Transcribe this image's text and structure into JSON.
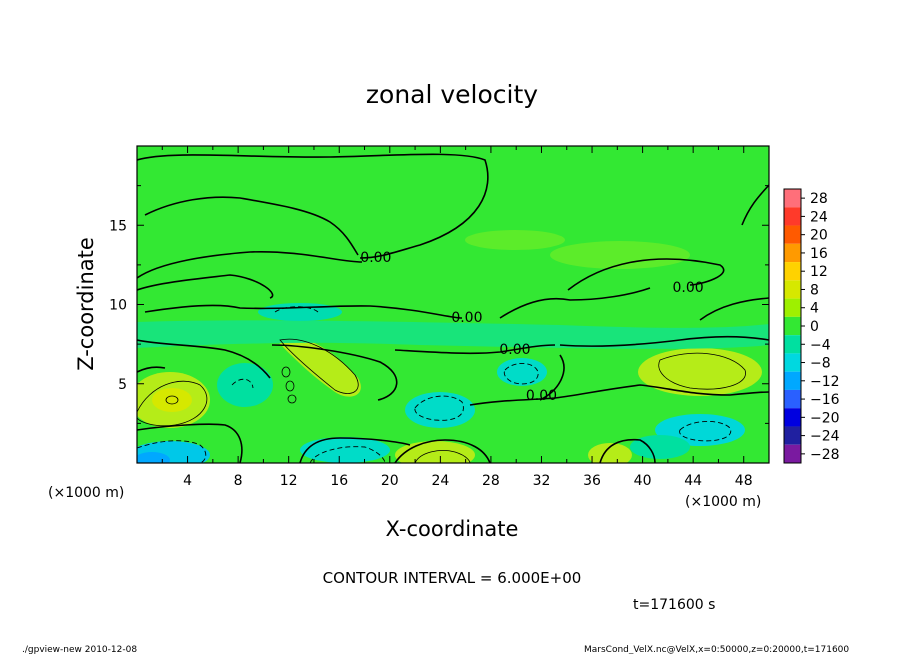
{
  "chart_data": {
    "type": "heatmap",
    "title": "zonal velocity",
    "xlabel": "X-coordinate",
    "ylabel": "Z-coordinate",
    "x_unit_label": "(×1000 m)",
    "y_unit_label": "(×1000 m)",
    "xlim": [
      0,
      50
    ],
    "ylim": [
      0,
      20
    ],
    "x_ticks": [
      4,
      8,
      12,
      16,
      20,
      24,
      28,
      32,
      36,
      40,
      44,
      48
    ],
    "x_tick_labels": [
      "4",
      "8",
      "12",
      "16",
      "20",
      "24",
      "28",
      "32",
      "36",
      "40",
      "44",
      "48"
    ],
    "y_ticks": [
      5,
      10,
      15
    ],
    "y_tick_labels": [
      "5",
      "10",
      "15"
    ],
    "colorbar": {
      "levels": [
        28,
        24,
        20,
        16,
        12,
        8,
        4,
        0,
        -4,
        -8,
        -12,
        -16,
        -20,
        -24,
        -28
      ],
      "labels": [
        "28",
        "24",
        "20",
        "16",
        "12",
        "8",
        "4",
        "0",
        "−4",
        "−8",
        "−12",
        "−16",
        "−20",
        "−24",
        "−28"
      ],
      "colors": [
        "#ff6f7a",
        "#ff3a2a",
        "#ff5a00",
        "#ff9a00",
        "#ffd200",
        "#d6e800",
        "#9ef000",
        "#33e833",
        "#00e0a0",
        "#00d8e0",
        "#00a8ff",
        "#2a60ff",
        "#0000e0",
        "#2020a0",
        "#7a1aa0"
      ]
    },
    "contour_labels": [
      {
        "text": "0.00",
        "x": 18.9,
        "z": 13.0
      },
      {
        "text": "0.00",
        "x": 43.6,
        "z": 11.1
      },
      {
        "text": "0.00",
        "x": 26.1,
        "z": 9.2
      },
      {
        "text": "0.00",
        "x": 29.9,
        "z": 7.2
      },
      {
        "text": "0.00",
        "x": 32.0,
        "z": 4.3
      }
    ],
    "contour_interval": "CONTOUR INTERVAL = 6.000E+00",
    "time_label": "t=171600 s",
    "grid": false
  },
  "footer": {
    "left": "./gpview-new  2010-12-08",
    "right": "MarsCond_VelX.nc@VelX,x=0:50000,z=0:20000,t=171600"
  }
}
